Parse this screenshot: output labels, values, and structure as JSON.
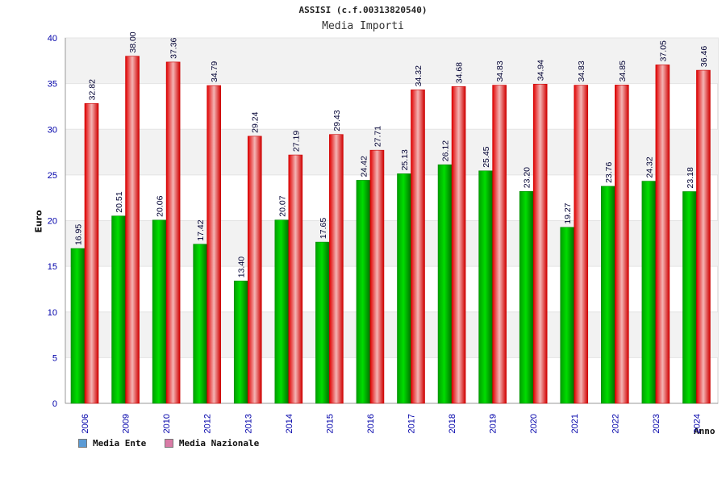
{
  "chart_data": {
    "type": "bar",
    "title": "ASSISI (c.f.00313820540)",
    "subtitle": "Media Importi",
    "xlabel": "Anno",
    "ylabel": "Euro",
    "ylim": [
      0,
      40
    ],
    "yticks": [
      0,
      5,
      10,
      15,
      20,
      25,
      30,
      35,
      40
    ],
    "categories": [
      "2006",
      "2009",
      "2010",
      "2012",
      "2013",
      "2014",
      "2015",
      "2016",
      "2017",
      "2018",
      "2019",
      "2020",
      "2021",
      "2022",
      "2023",
      "2024"
    ],
    "series": [
      {
        "name": "Media Ente",
        "values": [
          16.95,
          20.51,
          20.06,
          17.42,
          13.4,
          20.07,
          17.65,
          24.42,
          25.13,
          26.12,
          25.45,
          23.2,
          19.27,
          23.76,
          24.32,
          23.18
        ],
        "labels": [
          "16.95",
          "20.51",
          "20.06",
          "17.42",
          "13.40",
          "20.07",
          "17.65",
          "24.42",
          "25.13",
          "26.12",
          "25.45",
          "23.20",
          "19.27",
          "23.76",
          "24.32",
          "23.18"
        ]
      },
      {
        "name": "Media Nazionale",
        "values": [
          32.82,
          38.0,
          37.36,
          34.79,
          29.24,
          27.19,
          29.43,
          27.71,
          34.32,
          34.68,
          34.83,
          34.94,
          34.83,
          34.85,
          37.05,
          36.46
        ],
        "labels": [
          "32.82",
          "38.00",
          "37.36",
          "34.79",
          "29.24",
          "27.19",
          "29.43",
          "27.71",
          "34.32",
          "34.68",
          "34.83",
          "34.94",
          "34.83",
          "34.85",
          "37.05",
          "36.46"
        ]
      }
    ],
    "legend": [
      {
        "name": "Media Ente",
        "color": "#5b9bd5"
      },
      {
        "name": "Media Nazionale",
        "color": "#d97ba6"
      }
    ]
  }
}
